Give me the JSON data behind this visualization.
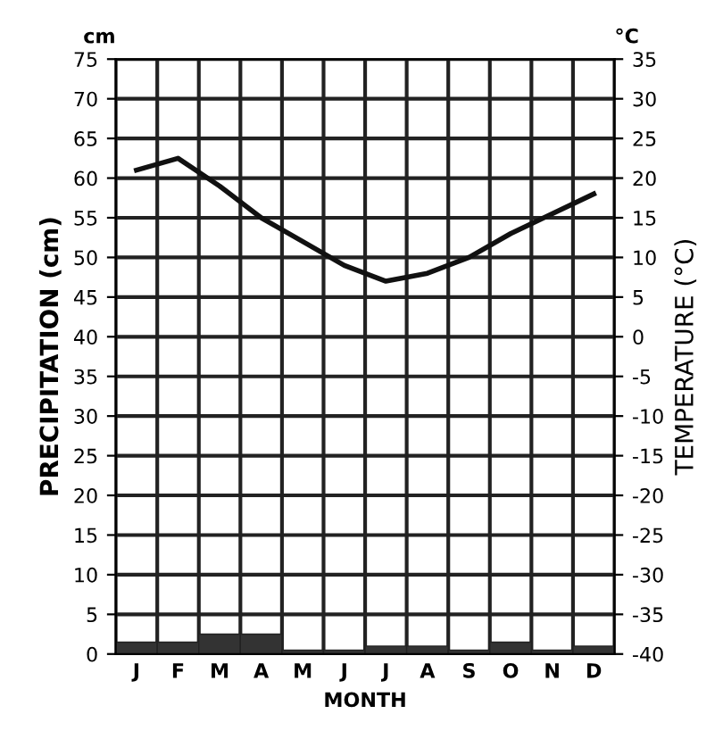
{
  "chart_data": {
    "type": "bar",
    "xlabel": "MONTH",
    "ylabel": "PRECIPITATION (cm)",
    "y2label": "TEMPERATURE (°C)",
    "annotations": [
      "cm",
      "°C"
    ],
    "categories": [
      "J",
      "F",
      "M",
      "A",
      "M",
      "J",
      "J",
      "A",
      "S",
      "O",
      "N",
      "D"
    ],
    "series": [
      {
        "color": "#333333",
        "values": [
          1.5,
          1.5,
          2.5,
          2.5,
          0.5,
          0.5,
          1,
          1,
          0.5,
          1.5,
          0.5,
          1
        ]
      },
      {
        "type": "line",
        "axis": "y2",
        "color": "#111111",
        "values": [
          21,
          22.5,
          19,
          15,
          12,
          9,
          7,
          8,
          10,
          13,
          15.5,
          18
        ]
      }
    ],
    "ylim": [
      0,
      75
    ],
    "yticks": [
      0,
      5,
      10,
      15,
      20,
      25,
      30,
      35,
      40,
      45,
      50,
      55,
      60,
      65,
      70,
      75
    ],
    "y2lim": [
      -40,
      35
    ],
    "y2ticks": [
      -40,
      -35,
      -30,
      -25,
      -20,
      -15,
      -10,
      -5,
      0,
      5,
      10,
      15,
      20,
      25,
      30,
      35
    ],
    "grid": true,
    "marker": "none",
    "line_style": "solid"
  }
}
